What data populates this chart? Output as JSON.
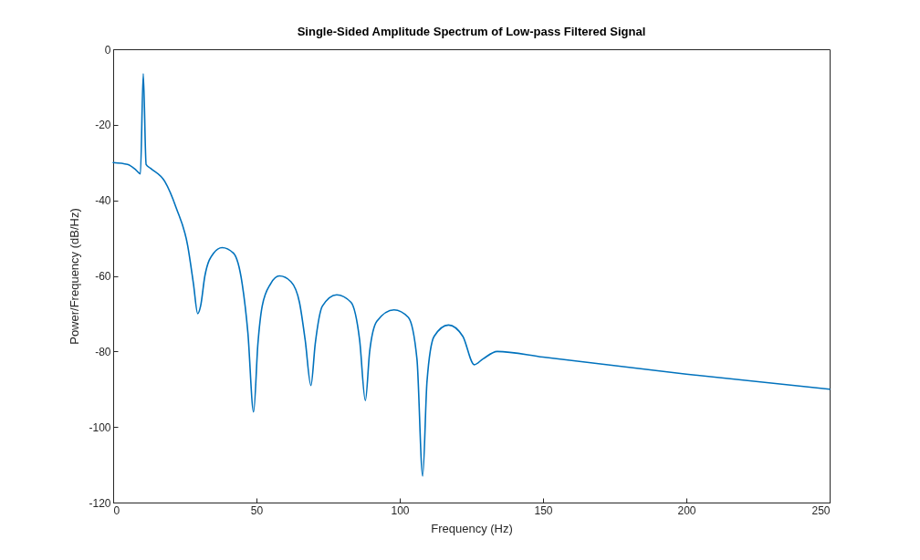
{
  "chart_data": {
    "type": "line",
    "title": "Single-Sided Amplitude Spectrum of Low-pass Filtered Signal",
    "xlabel": "Frequency (Hz)",
    "ylabel": "Power/Frequency (dB/Hz)",
    "xlim": [
      0,
      250
    ],
    "xticks": [
      0,
      50,
      100,
      150,
      200,
      250
    ],
    "ylim": [
      -120,
      0
    ],
    "yticks": [
      -120,
      -100,
      -80,
      -60,
      -40,
      -20,
      0
    ],
    "grid": false,
    "marker": "none",
    "line_style": "solid",
    "series": [
      {
        "color": "#0072bd",
        "x": [
          0,
          5,
          8,
          9.5,
          10.5,
          11.5,
          13,
          18,
          22,
          26,
          28,
          29.5,
          30.5,
          32,
          35,
          38,
          42,
          45,
          47,
          49,
          50.5,
          52,
          55,
          58,
          62,
          65,
          67,
          69,
          70.5,
          73,
          78,
          83,
          86,
          88,
          89.5,
          92,
          98,
          103,
          106,
          108,
          109.5,
          112,
          117,
          122,
          126,
          129,
          134,
          150,
          200,
          250
        ],
        "values": [
          -30,
          -30.5,
          -32,
          -33,
          -6.5,
          -30.5,
          -31.5,
          -35,
          -42,
          -52,
          -62,
          -70,
          -68,
          -60,
          -54,
          -52.5,
          -54,
          -62,
          -75,
          -96,
          -78,
          -68,
          -62,
          -60,
          -61.5,
          -67,
          -77,
          -89,
          -78,
          -68,
          -65,
          -67,
          -77,
          -93,
          -80,
          -72,
          -69,
          -71,
          -82,
          -113,
          -88,
          -76,
          -73,
          -76,
          -83.5,
          -82,
          -80,
          -81.5,
          -86,
          -90
        ]
      }
    ]
  }
}
